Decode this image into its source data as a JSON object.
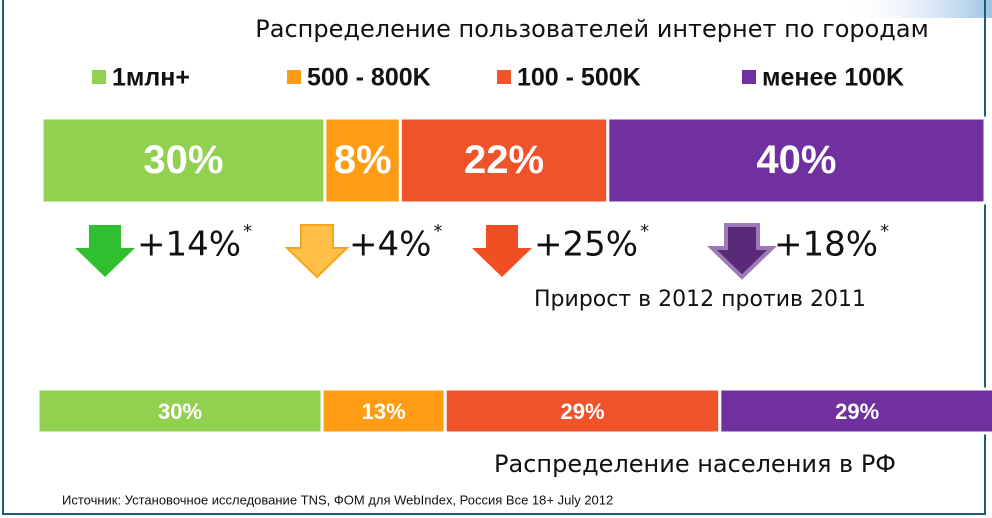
{
  "chart_data": {
    "type": "bar",
    "stacked": true,
    "categories": [
      "Распределение пользователей интернет по городам",
      "Распределение населения в РФ"
    ],
    "series": [
      {
        "name": "1млн+",
        "color": "#92d050",
        "values": [
          30,
          30
        ],
        "value_labels": [
          "30%",
          "30%"
        ]
      },
      {
        "name": "500 - 800K",
        "color": "#ff9c14",
        "values": [
          8,
          13
        ],
        "value_labels": [
          "8%",
          "13%"
        ]
      },
      {
        "name": "100 - 500K",
        "color": "#f0522a",
        "values": [
          22,
          29
        ],
        "value_labels": [
          "22%",
          "29%"
        ]
      },
      {
        "name": "менее 100K",
        "color": "#7030a0",
        "values": [
          40,
          29
        ],
        "value_labels": [
          "40%",
          "29%"
        ]
      }
    ],
    "xlim": [
      0,
      100
    ],
    "growth": {
      "label": "Прирост в 2012 против 2011",
      "values": [
        14,
        4,
        25,
        18
      ],
      "value_labels": [
        "+14%",
        "+4%",
        "+25%",
        "+18%"
      ],
      "marker": "*",
      "colors": [
        "#2fbf2f",
        "#ffc04a",
        "#f04e23",
        "#5a2a78"
      ]
    },
    "source": "Источник: Установочное исследование TNS, ФОМ для  WebIndex, Россия Все 18+ July 2012"
  }
}
